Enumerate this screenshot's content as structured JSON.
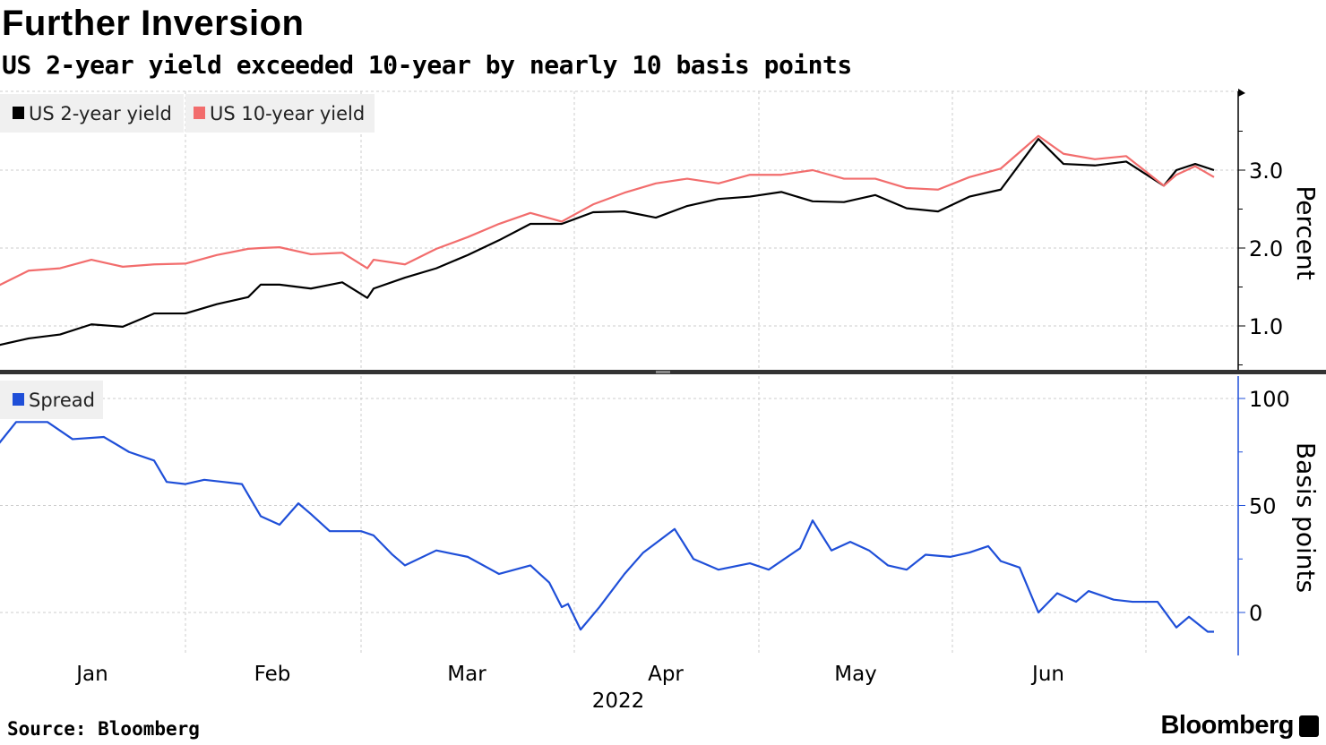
{
  "header": {
    "title": "Further Inversion",
    "subtitle": "US 2-year yield exceeded 10-year by nearly 10 basis points"
  },
  "footer": {
    "source": "Source: Bloomberg",
    "logo": "Bloomberg"
  },
  "chart_data": [
    {
      "type": "line",
      "title": "Further Inversion",
      "ylabel": "Percent",
      "ylim": [
        0.5,
        3.9
      ],
      "yticks": [
        "1.0",
        "2.0",
        "3.0"
      ],
      "ytick_values": [
        1,
        2,
        3
      ],
      "x_unit": "day of 2022 (0 = Jan 1)",
      "legend_position": "top-left",
      "series": [
        {
          "name": "US 2-year yield",
          "color": "#000000",
          "x": [
            1,
            6,
            11,
            16,
            21,
            26,
            31,
            36,
            41,
            43,
            46,
            51,
            56,
            60,
            61,
            66,
            71,
            76,
            81,
            86,
            91,
            96,
            101,
            106,
            111,
            116,
            121,
            126,
            131,
            136,
            141,
            146,
            151,
            156,
            161,
            167,
            171,
            176,
            181,
            187,
            189,
            192,
            195
          ],
          "values": [
            0.75,
            0.84,
            0.89,
            1.02,
            0.99,
            1.16,
            1.16,
            1.28,
            1.37,
            1.53,
            1.53,
            1.48,
            1.56,
            1.36,
            1.48,
            1.62,
            1.74,
            1.91,
            2.1,
            2.31,
            2.31,
            2.46,
            2.47,
            2.39,
            2.54,
            2.63,
            2.66,
            2.72,
            2.6,
            2.59,
            2.68,
            2.51,
            2.47,
            2.66,
            2.75,
            3.4,
            3.08,
            3.06,
            3.11,
            2.8,
            3.0,
            3.08,
            3.0
          ]
        },
        {
          "name": "US 10-year yield",
          "color": "#f26d6d",
          "x": [
            1,
            6,
            11,
            16,
            21,
            26,
            31,
            36,
            41,
            43,
            46,
            51,
            56,
            60,
            61,
            66,
            71,
            76,
            81,
            86,
            91,
            96,
            101,
            106,
            111,
            116,
            121,
            126,
            131,
            136,
            141,
            146,
            151,
            156,
            161,
            167,
            171,
            176,
            181,
            187,
            189,
            192,
            195
          ],
          "values": [
            1.51,
            1.71,
            1.74,
            1.85,
            1.76,
            1.79,
            1.8,
            1.91,
            1.99,
            2.0,
            2.01,
            1.92,
            1.94,
            1.74,
            1.85,
            1.79,
            1.99,
            2.14,
            2.31,
            2.45,
            2.34,
            2.56,
            2.71,
            2.83,
            2.89,
            2.83,
            2.94,
            2.94,
            3.0,
            2.89,
            2.89,
            2.77,
            2.75,
            2.91,
            3.02,
            3.44,
            3.21,
            3.14,
            3.18,
            2.8,
            2.94,
            3.05,
            2.91
          ]
        }
      ]
    },
    {
      "type": "line",
      "ylabel": "Basis points",
      "ylim": [
        -20,
        110
      ],
      "yticks": [
        "0",
        "50",
        "100"
      ],
      "ytick_values": [
        0,
        50,
        100
      ],
      "x_unit": "day of 2022 (0 = Jan 1)",
      "legend_position": "top-left",
      "xticks": [
        "Jan",
        "Feb",
        "Mar",
        "Apr",
        "May",
        "Jun"
      ],
      "xlabel": "2022",
      "series": [
        {
          "name": "Spread",
          "color": "#1f4fd8",
          "x": [
            1,
            4,
            9,
            13,
            18,
            22,
            26,
            28,
            31,
            34,
            37,
            40,
            43,
            46,
            49,
            51,
            54,
            59,
            61,
            64,
            66,
            71,
            76,
            81,
            86,
            89,
            91,
            92,
            94,
            97,
            101,
            104,
            109,
            112,
            116,
            121,
            124,
            129,
            131,
            134,
            137,
            140,
            143,
            146,
            149,
            153,
            156,
            159,
            161,
            164,
            167,
            170,
            173,
            175,
            179,
            182,
            186,
            189,
            191,
            194,
            195
          ],
          "values": [
            78,
            89,
            89,
            81,
            82,
            75,
            71,
            61,
            60,
            62,
            61,
            60,
            45,
            41,
            51,
            46,
            38,
            38,
            36,
            27,
            22,
            29,
            26,
            18,
            22,
            14,
            2.5,
            4,
            -8,
            2.5,
            18,
            28,
            39,
            25,
            20,
            23,
            20,
            30,
            43,
            29,
            33,
            29,
            22,
            20,
            27,
            26,
            28,
            31,
            24,
            21,
            0,
            9,
            5,
            10,
            6,
            5,
            5,
            -7,
            -2,
            -9,
            -9
          ]
        }
      ]
    }
  ]
}
